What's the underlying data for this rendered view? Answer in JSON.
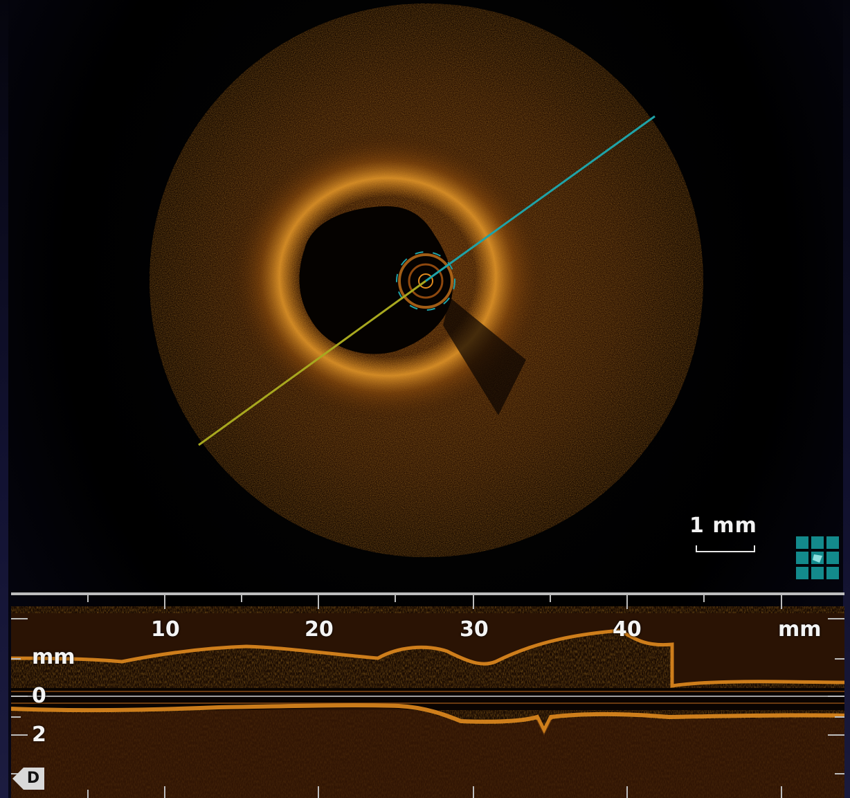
{
  "scale": {
    "label": "1 mm"
  },
  "longitudinal": {
    "top_ticks": [
      "10",
      "20",
      "30",
      "40"
    ],
    "top_unit": "mm",
    "left_unit": "mm",
    "left_ticks": [
      "0",
      "2"
    ],
    "badge": "D"
  },
  "colors": {
    "tissue": "#e08a1e",
    "cyan_line": "#1fa3a8",
    "yellow_line": "#a8a81f",
    "grid_icon": "#138a8c"
  },
  "icons": {
    "view_toggle": "grid-icon"
  }
}
